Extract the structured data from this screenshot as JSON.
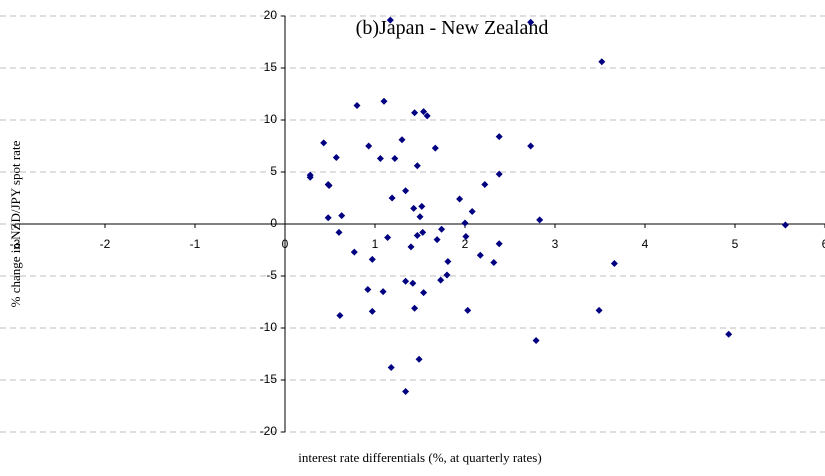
{
  "chart_data": {
    "type": "scatter",
    "title": "(b)Japan - New Zealand",
    "x_label": "interest rate differentials (%, at quarterly rates)",
    "y_label": "% change in NZD/JPY spot rate",
    "color": "#000080",
    "xlim": [
      -3,
      6
    ],
    "xticks": [
      -3,
      -2,
      -1,
      0,
      1,
      2,
      3,
      4,
      5,
      6
    ],
    "ylim": [
      -20,
      20
    ],
    "yticks": [
      -20,
      -15,
      -10,
      -5,
      0,
      5,
      10,
      15,
      20
    ],
    "grid": true,
    "x": [
      1.17,
      2.73,
      3.52,
      0.8,
      1.1,
      1.44,
      1.54,
      1.58,
      2.38,
      0.43,
      0.93,
      1.3,
      1.67,
      2.73,
      0.57,
      1.06,
      1.22,
      1.47,
      0.28,
      0.28,
      0.48,
      0.49,
      1.34,
      1.19,
      1.94,
      2.22,
      2.38,
      1.43,
      1.52,
      2.08,
      1.5,
      0.48,
      0.63,
      1.74,
      2.0,
      2.83,
      5.56,
      0.6,
      1.53,
      1.47,
      1.14,
      1.69,
      1.4,
      2.01,
      2.38,
      0.77,
      2.17,
      0.97,
      1.81,
      2.32,
      3.66,
      1.8,
      1.73,
      1.34,
      1.42,
      0.92,
      1.09,
      1.54,
      3.49,
      0.97,
      1.44,
      2.03,
      0.61,
      4.93,
      2.79,
      1.49,
      1.18,
      1.34
    ],
    "values": [
      19.6,
      19.4,
      15.6,
      11.4,
      11.8,
      10.7,
      10.8,
      10.4,
      8.4,
      7.8,
      7.5,
      8.1,
      7.3,
      7.5,
      6.4,
      6.3,
      6.3,
      5.6,
      4.7,
      4.5,
      3.8,
      3.7,
      3.2,
      2.5,
      2.4,
      3.8,
      4.8,
      1.5,
      1.7,
      1.2,
      0.7,
      0.6,
      0.8,
      -0.5,
      0.1,
      0.4,
      -0.1,
      -0.8,
      -0.8,
      -1.1,
      -1.3,
      -1.5,
      -2.2,
      -1.2,
      -1.9,
      -2.7,
      -3.0,
      -3.4,
      -3.6,
      -3.7,
      -3.8,
      -4.9,
      -5.4,
      -5.5,
      -5.7,
      -6.3,
      -6.5,
      -6.6,
      -8.3,
      -8.4,
      -8.1,
      -8.3,
      -8.8,
      -10.6,
      -11.2,
      -13.0,
      -13.8,
      -16.1
    ]
  }
}
